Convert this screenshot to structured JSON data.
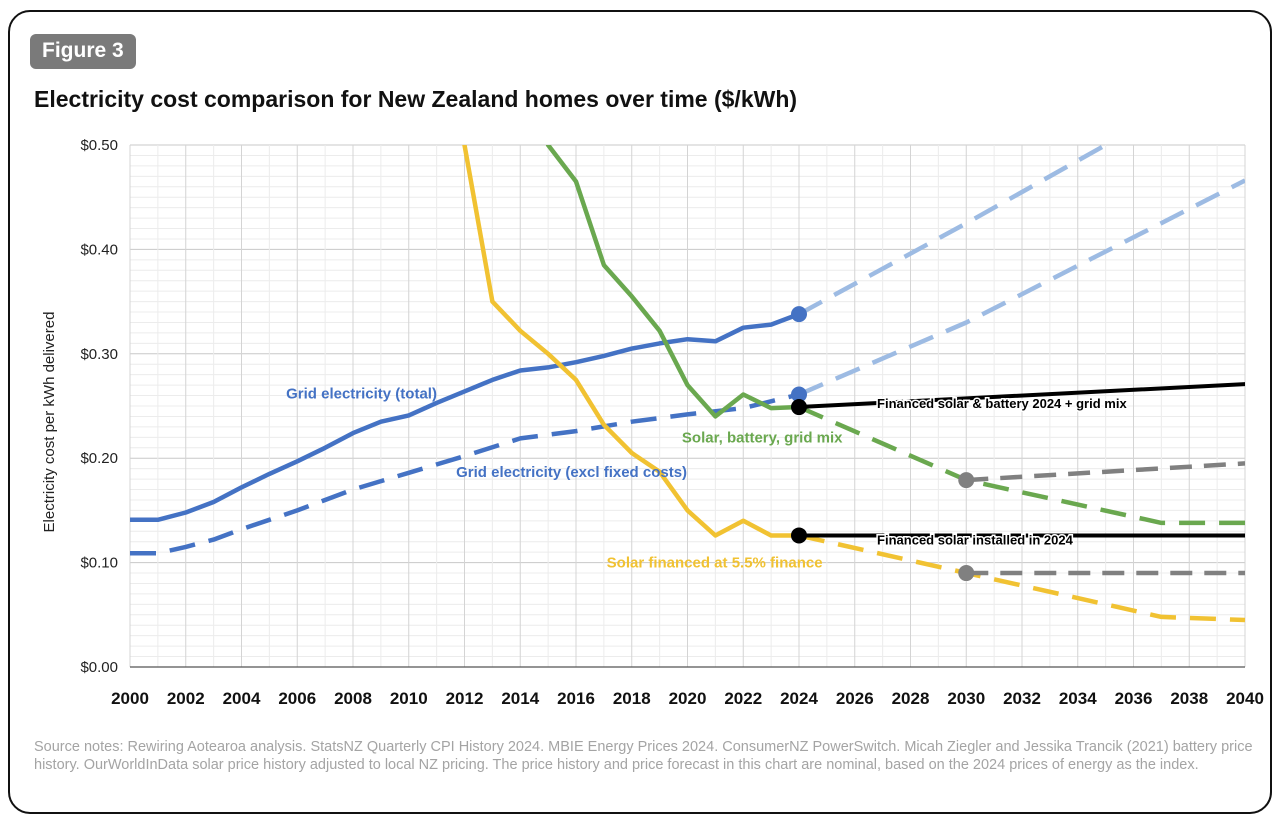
{
  "figure_label": "Figure 3",
  "source_notes": "Source notes: Rewiring Aotearoa analysis. StatsNZ Quarterly CPI History 2024. MBIE Energy Prices 2024. ConsumerNZ PowerSwitch. Micah Ziegler and Jessika Trancik (2021) battery price history. OurWorldInData solar price history adjusted to local NZ pricing. The price history and price forecast in this chart are nominal, based on the 2024 prices of energy as the index.",
  "colors": {
    "blue": "#4472c4",
    "blue_light": "#9dbbe3",
    "green": "#6aa84f",
    "yellow": "#f1c232",
    "black": "#000000",
    "grey": "#808080",
    "grid": "#d9d9d9"
  },
  "chart_data": {
    "type": "line",
    "title": "Electricity cost comparison for New Zealand homes over time ($/kWh)",
    "xlabel": "",
    "ylabel": "Electricity cost per kWh delivered",
    "xlim": [
      2000,
      2040
    ],
    "ylim": [
      0,
      0.5
    ],
    "x_ticks": [
      "2000",
      "2002",
      "2004",
      "2006",
      "2008",
      "2010",
      "2012",
      "2014",
      "2016",
      "2018",
      "2020",
      "2022",
      "2024",
      "2026",
      "2028",
      "2030",
      "2032",
      "2034",
      "2036",
      "2038",
      "2040"
    ],
    "y_ticks": [
      "$0.00",
      "$0.10",
      "$0.20",
      "$0.30",
      "$0.40",
      "$0.50"
    ],
    "y_tick_values": [
      0,
      0.1,
      0.2,
      0.3,
      0.4,
      0.5
    ],
    "series": [
      {
        "id": "grid-total",
        "name": "Grid electricity (total)",
        "color": "blue",
        "style": "solid",
        "x": [
          2000,
          2001,
          2002,
          2003,
          2004,
          2005,
          2006,
          2007,
          2008,
          2009,
          2010,
          2011,
          2012,
          2013,
          2014,
          2015,
          2016,
          2017,
          2018,
          2019,
          2020,
          2021,
          2022,
          2023,
          2024
        ],
        "y": [
          0.141,
          0.141,
          0.148,
          0.158,
          0.172,
          0.185,
          0.197,
          0.21,
          0.224,
          0.235,
          0.241,
          0.253,
          0.264,
          0.275,
          0.284,
          0.287,
          0.292,
          0.298,
          0.305,
          0.31,
          0.314,
          0.312,
          0.325,
          0.328,
          0.338
        ]
      },
      {
        "id": "grid-total-forecast-upper",
        "name": "",
        "color": "blue_light",
        "style": "dashed",
        "x": [
          2024,
          2030,
          2035
        ],
        "y": [
          0.338,
          0.425,
          0.5
        ]
      },
      {
        "id": "grid-total-forecast-lower",
        "name": "",
        "color": "blue_light",
        "style": "dashed",
        "x": [
          2024,
          2030,
          2040
        ],
        "y": [
          0.261,
          0.33,
          0.466
        ]
      },
      {
        "id": "grid-excl",
        "name": "Grid electricity (excl fixed costs)",
        "color": "blue",
        "style": "dashed",
        "x": [
          2000,
          2001,
          2002,
          2003,
          2004,
          2006,
          2008,
          2010,
          2012,
          2014,
          2016,
          2018,
          2020,
          2022,
          2024
        ],
        "y": [
          0.109,
          0.109,
          0.115,
          0.122,
          0.132,
          0.15,
          0.17,
          0.186,
          0.202,
          0.219,
          0.226,
          0.235,
          0.242,
          0.248,
          0.261
        ]
      },
      {
        "id": "solar-battery",
        "name": "Solar, battery, grid mix",
        "color": "green",
        "style": "solid",
        "x": [
          2015,
          2016,
          2017,
          2018,
          2019,
          2020,
          2021,
          2022,
          2023,
          2024
        ],
        "y": [
          0.5,
          0.465,
          0.385,
          0.355,
          0.322,
          0.27,
          0.24,
          0.261,
          0.248,
          0.249
        ]
      },
      {
        "id": "solar-battery-forecast",
        "name": "",
        "color": "green",
        "style": "dashed",
        "x": [
          2024,
          2030,
          2037,
          2040
        ],
        "y": [
          0.249,
          0.179,
          0.138,
          0.138
        ]
      },
      {
        "id": "solar-financed",
        "name": "Solar financed at 5.5% finance",
        "color": "yellow",
        "style": "solid",
        "x": [
          2012,
          2013,
          2014,
          2015,
          2016,
          2017,
          2018,
          2019,
          2020,
          2021,
          2022,
          2023,
          2024
        ],
        "y": [
          0.5,
          0.35,
          0.322,
          0.3,
          0.275,
          0.232,
          0.205,
          0.187,
          0.15,
          0.126,
          0.14,
          0.126,
          0.126
        ]
      },
      {
        "id": "solar-financed-forecast",
        "name": "",
        "color": "yellow",
        "style": "dashed",
        "x": [
          2024,
          2030,
          2037,
          2040
        ],
        "y": [
          0.126,
          0.09,
          0.048,
          0.045
        ]
      },
      {
        "id": "fin-solar-battery-2024",
        "name": "Financed solar & battery 2024 + grid mix",
        "color": "black",
        "style": "solid",
        "x": [
          2024,
          2040
        ],
        "y": [
          0.249,
          0.271
        ]
      },
      {
        "id": "fin-solar-2024",
        "name": "Financed solar installed in 2024",
        "color": "black",
        "style": "solid",
        "x": [
          2024,
          2040
        ],
        "y": [
          0.126,
          0.126
        ]
      },
      {
        "id": "solar-battery-2030",
        "name": "",
        "color": "grey",
        "style": "dashed",
        "x": [
          2030,
          2040
        ],
        "y": [
          0.179,
          0.195
        ]
      },
      {
        "id": "solar-2030",
        "name": "",
        "color": "grey",
        "style": "dashed",
        "x": [
          2030,
          2040
        ],
        "y": [
          0.09,
          0.09
        ]
      }
    ],
    "markers": [
      {
        "x": 2024,
        "y": 0.338,
        "color": "blue"
      },
      {
        "x": 2024,
        "y": 0.261,
        "color": "blue"
      },
      {
        "x": 2024,
        "y": 0.249,
        "color": "black"
      },
      {
        "x": 2024,
        "y": 0.126,
        "color": "black"
      },
      {
        "x": 2030,
        "y": 0.179,
        "color": "grey"
      },
      {
        "x": 2030,
        "y": 0.09,
        "color": "grey"
      }
    ],
    "annotations": [
      {
        "text": "Grid electricity (total)",
        "x": 2005.6,
        "y": 0.262,
        "color": "blue",
        "anchor": "start"
      },
      {
        "text": "Grid electricity (excl fixed costs)",
        "x": 2011.7,
        "y": 0.187,
        "color": "blue",
        "anchor": "start"
      },
      {
        "text": "Solar, battery, grid mix",
        "x": 2019.8,
        "y": 0.22,
        "color": "green",
        "anchor": "start"
      },
      {
        "text": "Solar financed at 5.5% finance",
        "x": 2017.1,
        "y": 0.1,
        "color": "yellow",
        "anchor": "start"
      },
      {
        "text": "Financed solar & battery 2024 + grid mix",
        "x": 2026.8,
        "y": 0.253,
        "color": "black",
        "anchor": "start"
      },
      {
        "text": "Financed solar installed in 2024",
        "x": 2026.8,
        "y": 0.122,
        "color": "black",
        "anchor": "start"
      }
    ]
  }
}
